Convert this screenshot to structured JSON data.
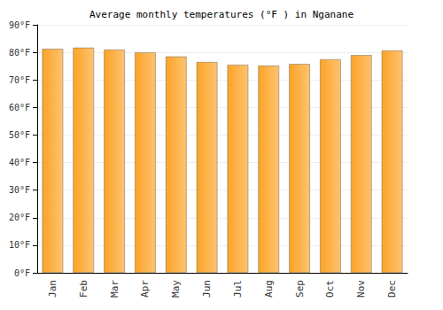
{
  "chart_data": {
    "type": "bar",
    "title": "Average monthly temperatures (°F ) in Nganane",
    "categories": [
      "Jan",
      "Feb",
      "Mar",
      "Apr",
      "May",
      "Jun",
      "Jul",
      "Aug",
      "Sep",
      "Oct",
      "Nov",
      "Dec"
    ],
    "values": [
      81.3,
      81.7,
      81.0,
      80.0,
      78.5,
      76.5,
      75.5,
      75.2,
      75.8,
      77.5,
      79.0,
      80.7
    ],
    "color": "#fca326",
    "ylim": [
      0,
      90
    ],
    "yticks": [
      {
        "value": 0,
        "label": "0°F"
      },
      {
        "value": 10,
        "label": "10°F"
      },
      {
        "value": 20,
        "label": "20°F"
      },
      {
        "value": 30,
        "label": "30°F"
      },
      {
        "value": 40,
        "label": "40°F"
      },
      {
        "value": 50,
        "label": "50°F"
      },
      {
        "value": 60,
        "label": "60°F"
      },
      {
        "value": 70,
        "label": "70°F"
      },
      {
        "value": 80,
        "label": "80°F"
      },
      {
        "value": 90,
        "label": "90°F"
      }
    ],
    "grid": true
  }
}
